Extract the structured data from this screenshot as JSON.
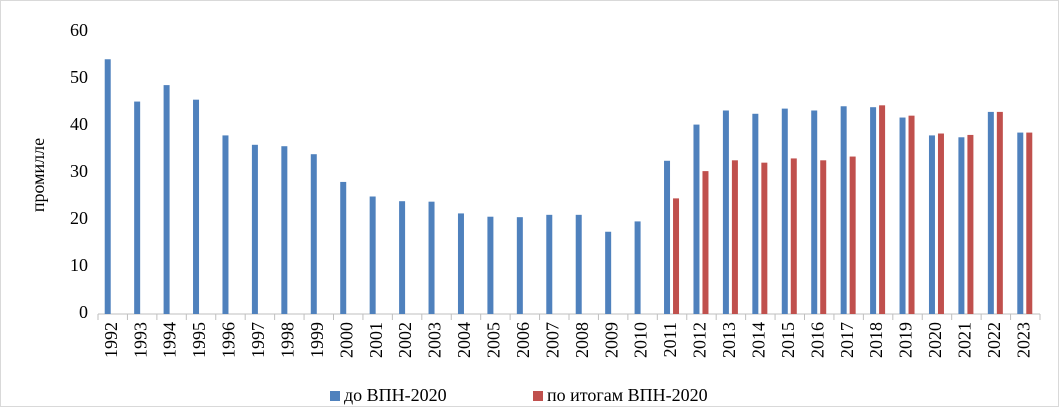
{
  "chart_data": {
    "type": "bar",
    "y_label": "промилле",
    "categories": [
      "1992",
      "1993",
      "1994",
      "1995",
      "1996",
      "1997",
      "1998",
      "1999",
      "2000",
      "2001",
      "2002",
      "2003",
      "2004",
      "2005",
      "2006",
      "2007",
      "2008",
      "2009",
      "2010",
      "2011",
      "2012",
      "2013",
      "2014",
      "2015",
      "2016",
      "2017",
      "2018",
      "2019",
      "2020",
      "2021",
      "2022",
      "2023"
    ],
    "series": [
      {
        "name": "до ВПН-2020",
        "color": "#4f81bd",
        "values": [
          54.2,
          45.2,
          48.7,
          45.6,
          38.0,
          36.0,
          35.7,
          34.0,
          28.1,
          25.0,
          24.0,
          23.9,
          21.4,
          20.7,
          20.6,
          21.1,
          21.1,
          17.5,
          19.7,
          32.6,
          40.3,
          43.3,
          42.6,
          43.7,
          43.3,
          44.2,
          44.0,
          41.8,
          38.0,
          37.6,
          43.0,
          38.6
        ]
      },
      {
        "name": "по итогам ВПН-2020",
        "color": "#c0504d",
        "values": [
          null,
          null,
          null,
          null,
          null,
          null,
          null,
          null,
          null,
          null,
          null,
          null,
          null,
          null,
          null,
          null,
          null,
          null,
          null,
          24.6,
          30.4,
          32.7,
          32.2,
          33.1,
          32.7,
          33.5,
          44.4,
          42.2,
          38.4,
          38.1,
          43.0,
          38.6
        ]
      }
    ],
    "ylim": [
      0,
      60
    ],
    "yticks": [
      0,
      10,
      20,
      30,
      40,
      50,
      60
    ],
    "grid": false,
    "legend": "bottom"
  }
}
